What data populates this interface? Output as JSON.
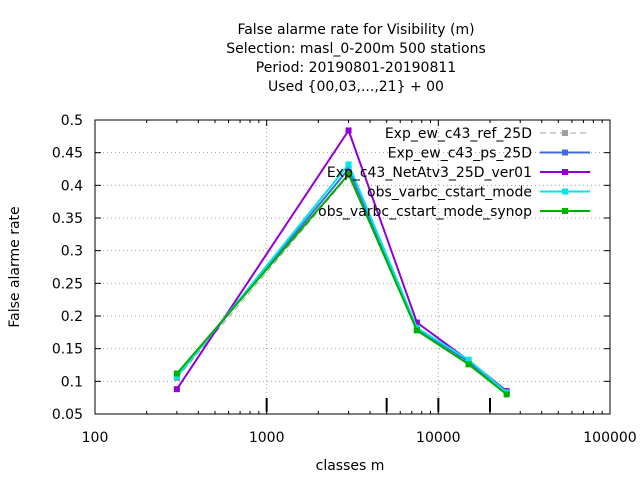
{
  "chart_data": {
    "type": "line",
    "title_lines": [
      "False alarme rate  for Visibility (m)",
      "Selection: masl_0-200m    500 stations",
      "Period: 20190801-20190811",
      "Used {00,03,...,21} + 00"
    ],
    "xlabel": "classes m",
    "ylabel": "False alarme rate",
    "x_scale": "log",
    "xlim": [
      100,
      100000
    ],
    "ylim": [
      0.05,
      0.5
    ],
    "x_ticks": [
      100,
      1000,
      10000,
      100000
    ],
    "x_tick_labels": [
      "100",
      "1000",
      "10000",
      "100000"
    ],
    "y_ticks": [
      0.05,
      0.1,
      0.15,
      0.2,
      0.25,
      0.3,
      0.35,
      0.4,
      0.45,
      0.5
    ],
    "y_tick_labels": [
      "0.05",
      "0.1",
      "0.15",
      "0.2",
      "0.25",
      "0.3",
      "0.35",
      "0.4",
      "0.45",
      "0.5"
    ],
    "class_markers": [
      1000,
      5000,
      10000,
      20000
    ],
    "grid": true,
    "legend_position": "top-right",
    "x": [
      300,
      3000,
      7500,
      15000,
      25000
    ],
    "series": [
      {
        "name": "Exp_ew_c43_ref_25D",
        "color": "#a0a0a0",
        "dashed": true,
        "values": [
          0.105,
          0.415,
          0.18,
          0.128,
          0.082
        ]
      },
      {
        "name": "Exp_ew_c43_ps_25D",
        "color": "#4169e1",
        "dashed": false,
        "values": [
          0.108,
          0.425,
          0.181,
          0.13,
          0.083
        ]
      },
      {
        "name": "Exp_c43_NetAtv3_25D_ver01",
        "color": "#9400d3",
        "dashed": false,
        "values": [
          0.088,
          0.484,
          0.19,
          0.132,
          0.085
        ]
      },
      {
        "name": "obs_varbc_cstart_mode",
        "color": "#00e5e5",
        "dashed": false,
        "values": [
          0.107,
          0.432,
          0.182,
          0.133,
          0.083
        ]
      },
      {
        "name": "obs_varbc_cstart_mode_synop",
        "color": "#00b000",
        "dashed": false,
        "values": [
          0.112,
          0.417,
          0.178,
          0.126,
          0.08
        ]
      }
    ]
  }
}
